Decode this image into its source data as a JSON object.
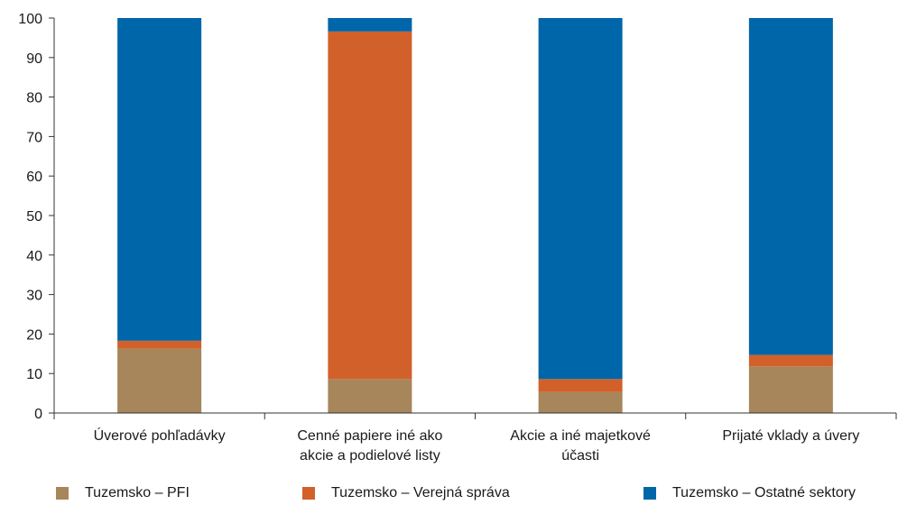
{
  "chart_data": {
    "type": "bar",
    "stacked": true,
    "categories": [
      [
        "Úverové pohľadávky"
      ],
      [
        "Cenné  papiere iné ako",
        "akcie a podielové listy"
      ],
      [
        "Akcie a iné majetkové",
        "účasti"
      ],
      [
        "Prijaté vklady a úvery"
      ]
    ],
    "series": [
      {
        "name": "Tuzemsko – PFI",
        "color": "#A6865A",
        "values": [
          16.3,
          8.6,
          5.3,
          11.8
        ]
      },
      {
        "name": "Tuzemsko – Verejná správa",
        "color": "#D2602A",
        "values": [
          2.0,
          88.0,
          3.3,
          2.9
        ]
      },
      {
        "name": "Tuzemsko – Ostatné sektory",
        "color": "#0066AA",
        "values": [
          81.7,
          3.4,
          91.4,
          85.3
        ]
      }
    ],
    "ylim": [
      0,
      100
    ],
    "yticks": [
      0,
      10,
      20,
      30,
      40,
      50,
      60,
      70,
      80,
      90,
      100
    ],
    "grid": false,
    "legend_position": "bottom"
  }
}
